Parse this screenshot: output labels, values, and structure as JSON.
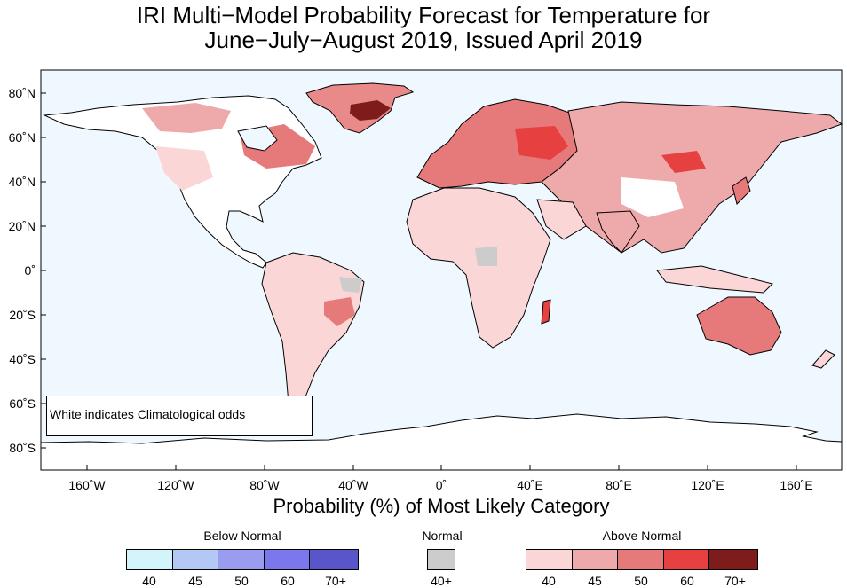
{
  "title_line1": "IRI Multi−Model Probability Forecast for Temperature for",
  "title_line2": "June−July−August 2019, Issued April 2019",
  "caption": "Probability (%) of Most Likely Category",
  "note": "White indicates Climatological odds",
  "lat_labels": [
    "80˚N",
    "60˚N",
    "40˚N",
    "20˚N",
    "0˚",
    "20˚S",
    "40˚S",
    "60˚S",
    "80˚S"
  ],
  "lon_labels": [
    "160˚W",
    "120˚W",
    "80˚W",
    "40˚W",
    "0˚",
    "40˚E",
    "80˚E",
    "120˚E",
    "160˚E"
  ],
  "legend": {
    "below": {
      "label": "Below Normal",
      "ticks": [
        "40",
        "45",
        "50",
        "60",
        "70+"
      ],
      "colors": [
        "#d2f4fa",
        "#b3c8f4",
        "#9a9cf0",
        "#7a78ec",
        "#5856c8"
      ]
    },
    "normal": {
      "label": "Normal",
      "ticks": [
        "40+"
      ],
      "colors": [
        "#cccccc"
      ]
    },
    "above": {
      "label": "Above Normal",
      "ticks": [
        "40",
        "45",
        "50",
        "60",
        "70+"
      ],
      "colors": [
        "#fad6d6",
        "#eeaaaa",
        "#e67a7a",
        "#e64040",
        "#7e1c1c"
      ]
    }
  },
  "colors": {
    "ocean": "#f0f8ff",
    "land": "#ffffff",
    "border": "#888888",
    "coast": "#000000"
  }
}
